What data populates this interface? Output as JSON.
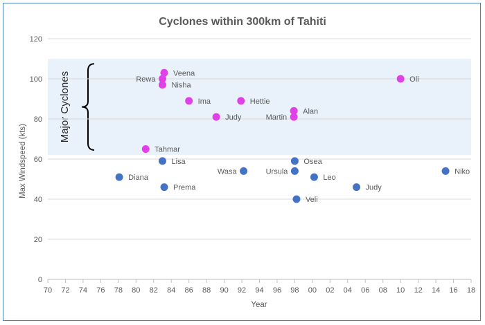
{
  "chart_data": {
    "type": "scatter",
    "title": "Cyclones within 300km of Tahiti",
    "xlabel": "Year",
    "ylabel": "Max Windspeed (kts)",
    "xlim": [
      1970,
      2018
    ],
    "ylim": [
      0,
      120
    ],
    "x_ticks": [
      1970,
      1972,
      1974,
      1976,
      1978,
      1980,
      1982,
      1984,
      1986,
      1988,
      1990,
      1992,
      1994,
      1996,
      1998,
      2000,
      2002,
      2004,
      2006,
      2008,
      2010,
      2012,
      2014,
      2016,
      2018
    ],
    "x_tick_labels": [
      "70",
      "72",
      "74",
      "76",
      "78",
      "80",
      "82",
      "84",
      "86",
      "88",
      "90",
      "92",
      "94",
      "96",
      "98",
      "00",
      "02",
      "04",
      "06",
      "08",
      "10",
      "12",
      "14",
      "16",
      "18"
    ],
    "y_ticks": [
      0,
      20,
      40,
      60,
      80,
      100,
      120
    ],
    "grid": "horizontal",
    "highlight_band": {
      "y_from": 62,
      "y_to": 110,
      "label": "Major Cyclones",
      "color": "#e9f1fa"
    },
    "series": [
      {
        "color": "#e040e8",
        "points": [
          {
            "name": "Veena",
            "year": 1983.2,
            "windspeed": 103,
            "label_side": "right"
          },
          {
            "name": "Rewa",
            "year": 1983.0,
            "windspeed": 100,
            "label_side": "left"
          },
          {
            "name": "Nisha",
            "year": 1983.0,
            "windspeed": 97,
            "label_side": "right"
          },
          {
            "name": "Ima",
            "year": 1986.0,
            "windspeed": 89,
            "label_side": "right"
          },
          {
            "name": "Hettie",
            "year": 1991.9,
            "windspeed": 89,
            "label_side": "right"
          },
          {
            "name": "Judy",
            "year": 1989.1,
            "windspeed": 81,
            "label_side": "right"
          },
          {
            "name": "Alan",
            "year": 1997.9,
            "windspeed": 84,
            "label_side": "right"
          },
          {
            "name": "Martin",
            "year": 1997.9,
            "windspeed": 81,
            "label_side": "left"
          },
          {
            "name": "Oli",
            "year": 2010.0,
            "windspeed": 100,
            "label_side": "right"
          },
          {
            "name": "Tahmar",
            "year": 1981.1,
            "windspeed": 65,
            "label_side": "right"
          }
        ]
      },
      {
        "color": "#4472c4",
        "points": [
          {
            "name": "Lisa",
            "year": 1983.0,
            "windspeed": 59,
            "label_side": "right"
          },
          {
            "name": "Diana",
            "year": 1978.1,
            "windspeed": 51,
            "label_side": "right"
          },
          {
            "name": "Prema",
            "year": 1983.2,
            "windspeed": 46,
            "label_side": "right"
          },
          {
            "name": "Wasa",
            "year": 1992.2,
            "windspeed": 54,
            "label_side": "left"
          },
          {
            "name": "Osea",
            "year": 1998.0,
            "windspeed": 59,
            "label_side": "right"
          },
          {
            "name": "Ursula",
            "year": 1998.0,
            "windspeed": 54,
            "label_side": "left"
          },
          {
            "name": "Leo",
            "year": 2000.2,
            "windspeed": 51,
            "label_side": "right"
          },
          {
            "name": "Veli",
            "year": 1998.2,
            "windspeed": 40,
            "label_side": "right"
          },
          {
            "name": "Judy",
            "year": 2005.0,
            "windspeed": 46,
            "label_side": "right"
          },
          {
            "name": "Niko",
            "year": 2015.1,
            "windspeed": 54,
            "label_side": "right"
          }
        ]
      }
    ]
  }
}
